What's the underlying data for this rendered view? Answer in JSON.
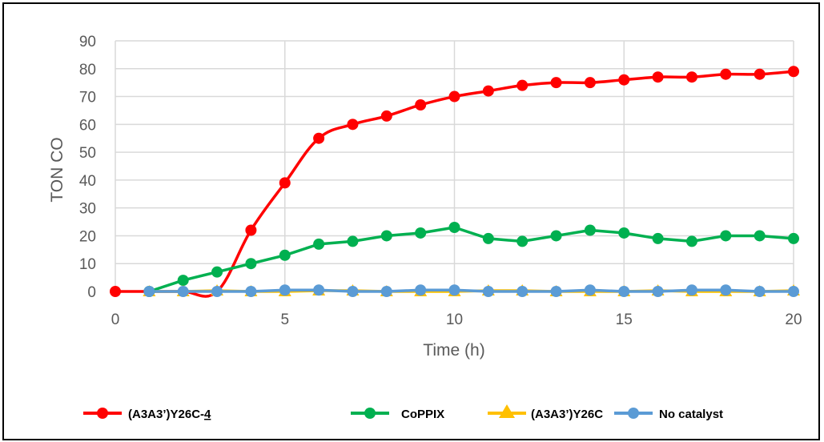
{
  "chart_data": {
    "type": "line",
    "title": "",
    "xlabel": "Time (h)",
    "ylabel": "TON CO",
    "xlim": [
      0,
      20
    ],
    "ylim": [
      0,
      90
    ],
    "x_ticks": [
      "0",
      "5",
      "10",
      "15",
      "20"
    ],
    "y_ticks": [
      "0",
      "10",
      "20",
      "30",
      "40",
      "50",
      "60",
      "70",
      "80",
      "90"
    ],
    "grid": true,
    "legend_position": "bottom",
    "series": [
      {
        "name": "(A3A3’)Y26C-4",
        "name_main": "(A3A3’)Y26C-",
        "name_sub": "4",
        "color": "#ff0000",
        "marker": "circle",
        "smooth": true,
        "x": [
          0,
          1,
          2,
          3,
          4,
          5,
          6,
          7,
          8,
          9,
          10,
          11,
          12,
          13,
          14,
          15,
          16,
          17,
          18,
          19,
          20
        ],
        "y": [
          0,
          0,
          0,
          0,
          22,
          39,
          55,
          60,
          63,
          67,
          70,
          72,
          74,
          75,
          75,
          76,
          77,
          77,
          78,
          78,
          79
        ],
        "marker_points": [
          0,
          4,
          5,
          6,
          7,
          8,
          9,
          10,
          11,
          12,
          13,
          14,
          15,
          16,
          17,
          18,
          19,
          20
        ]
      },
      {
        "name": "CoPPIX",
        "color": "#00b050",
        "marker": "circle",
        "smooth": false,
        "x": [
          1,
          2,
          3,
          4,
          5,
          6,
          7,
          8,
          9,
          10,
          11,
          12,
          13,
          14,
          15,
          16,
          17,
          18,
          19,
          20
        ],
        "y": [
          0,
          4,
          7,
          10,
          13,
          17,
          18,
          20,
          21,
          23,
          19,
          18,
          20,
          22,
          21,
          19,
          18,
          20,
          20,
          19
        ]
      },
      {
        "name": "(A3A3’)Y26C",
        "color": "#ffc000",
        "marker": "triangle",
        "smooth": false,
        "x": [
          1,
          2,
          3,
          4,
          5,
          6,
          7,
          8,
          9,
          10,
          11,
          12,
          13,
          14,
          15,
          16,
          17,
          18,
          19,
          20
        ],
        "y": [
          0,
          0,
          0.3,
          0,
          0,
          0.3,
          0.3,
          0,
          0,
          0,
          0.3,
          0.3,
          0,
          0,
          0,
          0.3,
          0,
          0,
          0,
          0.3
        ]
      },
      {
        "name": "No catalyst",
        "color": "#5b9bd5",
        "marker": "circle",
        "smooth": false,
        "x": [
          1,
          2,
          3,
          4,
          5,
          6,
          7,
          8,
          9,
          10,
          11,
          12,
          13,
          14,
          15,
          16,
          17,
          18,
          19,
          20
        ],
        "y": [
          0,
          0,
          0,
          0,
          0.5,
          0.5,
          0,
          0,
          0.5,
          0.5,
          0,
          0,
          0,
          0.5,
          0,
          0,
          0.5,
          0.5,
          0,
          0
        ]
      }
    ]
  }
}
